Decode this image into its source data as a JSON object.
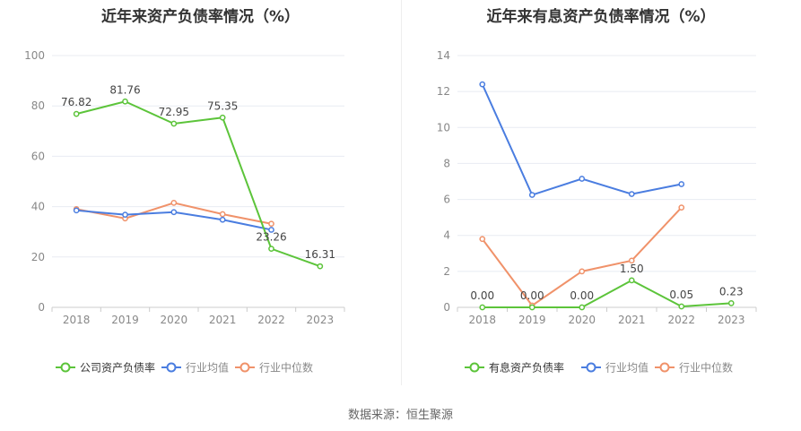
{
  "footer": {
    "source": "数据来源：恒生聚源"
  },
  "chart_data": [
    {
      "type": "line",
      "title": "近年来资产负债率情况（%）",
      "categories": [
        "2018",
        "2019",
        "2020",
        "2021",
        "2022",
        "2023"
      ],
      "ylim": [
        0,
        100
      ],
      "yticks": [
        0,
        20,
        40,
        60,
        80,
        100
      ],
      "grid": true,
      "legend_position": "bottom",
      "series": [
        {
          "name": "公司资产负债率",
          "color": "#5cc43a",
          "values": [
            76.82,
            81.76,
            72.95,
            75.35,
            23.26,
            16.31
          ],
          "labels": [
            "76.82",
            "81.76",
            "72.95",
            "75.35",
            "23.26",
            "16.31"
          ]
        },
        {
          "name": "行业均值",
          "color": "#4a7de0",
          "values": [
            38.5,
            36.8,
            37.8,
            34.8,
            30.8,
            null
          ]
        },
        {
          "name": "行业中位数",
          "color": "#f0926a",
          "values": [
            39.0,
            35.3,
            41.5,
            37.0,
            33.2,
            null
          ]
        }
      ]
    },
    {
      "type": "line",
      "title": "近年来有息资产负债率情况（%）",
      "categories": [
        "2018",
        "2019",
        "2020",
        "2021",
        "2022",
        "2023"
      ],
      "ylim": [
        0,
        14
      ],
      "yticks": [
        0,
        2,
        4,
        6,
        8,
        10,
        12,
        14
      ],
      "grid": true,
      "legend_position": "bottom",
      "series": [
        {
          "name": "有息资产负债率",
          "color": "#5cc43a",
          "values": [
            0.0,
            0.0,
            0.0,
            1.5,
            0.05,
            0.23
          ],
          "labels": [
            "0.00",
            "0.00",
            "0.00",
            "1.50",
            "0.05",
            "0.23"
          ]
        },
        {
          "name": "行业均值",
          "color": "#4a7de0",
          "values": [
            12.4,
            6.25,
            7.15,
            6.3,
            6.85,
            null
          ]
        },
        {
          "name": "行业中位数",
          "color": "#f0926a",
          "values": [
            3.8,
            0.1,
            2.0,
            2.6,
            5.55,
            null
          ]
        }
      ]
    }
  ]
}
